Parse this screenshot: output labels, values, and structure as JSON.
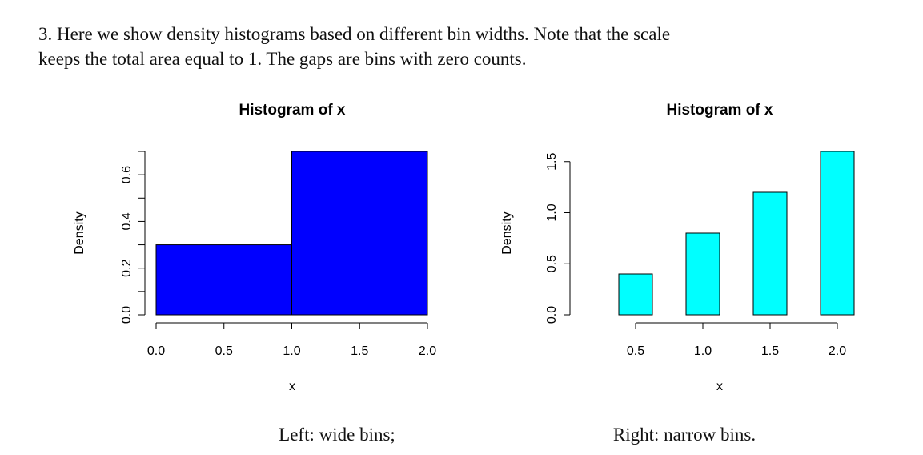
{
  "paragraph": {
    "lines": [
      "3.  Here we show density histograms based on different bin widths.  Note that the scale",
      "keeps the total area equal to 1.  The gaps are bins with zero counts."
    ]
  },
  "chart_data": [
    {
      "type": "histogram",
      "title": "Histogram of x",
      "x_label": "x",
      "y_label": "Density",
      "color": "#0000ff",
      "bins": [
        0,
        1,
        2
      ],
      "values": [
        0.3,
        0.7
      ],
      "xlim": [
        0,
        2
      ],
      "ylim": [
        0,
        0.7
      ],
      "xticks": [
        {
          "value": 0,
          "label": "0.0"
        },
        0.5,
        {
          "value": 1,
          "label": "1.0"
        },
        1.5,
        {
          "value": 2,
          "label": "2.0"
        }
      ],
      "yticks": [
        {
          "value": 0,
          "label": "0.0"
        },
        0.2,
        0.4,
        0.6
      ],
      "minor_yticks": [
        0.1,
        0.3,
        0.5,
        0.7
      ]
    },
    {
      "type": "histogram",
      "title": "Histogram of x",
      "x_label": "x",
      "y_label": "Density",
      "color": "#00ffff",
      "bins": [
        0.125,
        0.375,
        0.625,
        0.875,
        1.125,
        1.375,
        1.625,
        1.875,
        2.125
      ],
      "values": [
        0,
        0.4,
        0,
        0.8,
        0,
        1.2,
        0,
        1.6
      ],
      "xlim": [
        0.125,
        2.125
      ],
      "ylim": [
        0,
        1.6
      ],
      "xticks": [
        0.5,
        {
          "value": 1,
          "label": "1.0"
        },
        1.5,
        {
          "value": 2,
          "label": "2.0"
        }
      ],
      "yticks": [
        {
          "value": 0,
          "label": "0.0"
        },
        0.5,
        {
          "value": 1,
          "label": "1.0"
        },
        1.5
      ]
    }
  ],
  "captions": [
    "Left: wide bins;",
    "Right: narrow bins."
  ]
}
